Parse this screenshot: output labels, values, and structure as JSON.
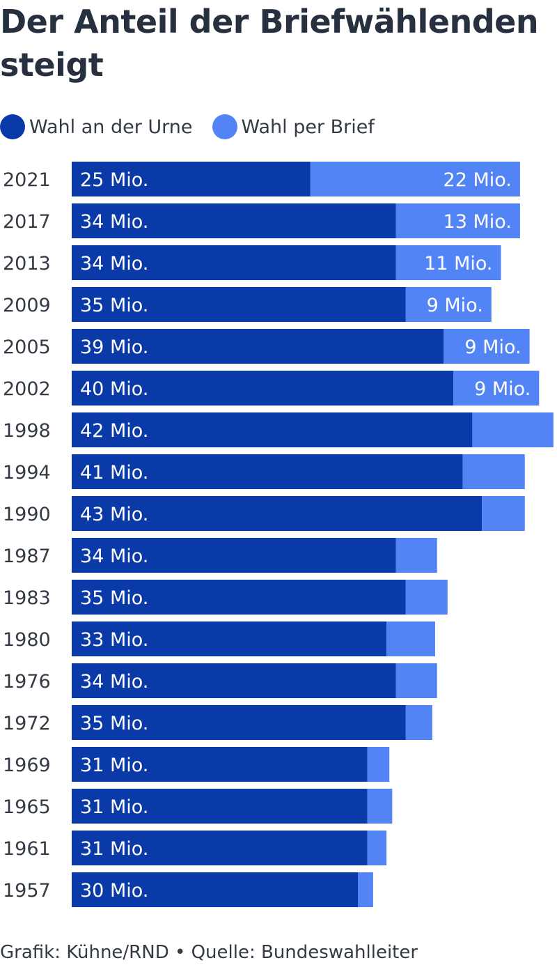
{
  "title": "Der Anteil der Briefwählenden steigt",
  "legend": [
    {
      "label": "Wahl an der Urne",
      "color": "#0a3aa8"
    },
    {
      "label": "Wahl per Brief",
      "color": "#5384f6"
    }
  ],
  "source": "Grafik: Kühne/RND • Quelle: Bundeswahlleiter",
  "chart_data": {
    "type": "bar",
    "orientation": "horizontal",
    "stacked": true,
    "title": "Der Anteil der Briefwählenden steigt",
    "unit": "Mio.",
    "categories": [
      "2021",
      "2017",
      "2013",
      "2009",
      "2005",
      "2002",
      "1998",
      "1994",
      "1990",
      "1987",
      "1983",
      "1980",
      "1976",
      "1972",
      "1969",
      "1965",
      "1961",
      "1957"
    ],
    "series": [
      {
        "name": "Wahl an der Urne",
        "color": "#0a3aa8",
        "values": [
          25,
          34,
          34,
          35,
          39,
          40,
          42,
          41,
          43,
          34,
          35,
          33,
          34,
          35,
          31,
          31,
          31,
          30
        ],
        "labels": [
          "25 Mio.",
          "34 Mio.",
          "34 Mio.",
          "35 Mio.",
          "39 Mio.",
          "40 Mio.",
          "42 Mio.",
          "41 Mio.",
          "43 Mio.",
          "34 Mio.",
          "35 Mio.",
          "33 Mio.",
          "34 Mio.",
          "35 Mio.",
          "31 Mio.",
          "31 Mio.",
          "31 Mio.",
          "30 Mio."
        ]
      },
      {
        "name": "Wahl per Brief",
        "color": "#5384f6",
        "values": [
          22,
          13,
          11,
          9,
          9,
          9,
          8.5,
          6.5,
          4.5,
          4.3,
          4.4,
          5.1,
          4.3,
          2.8,
          2.3,
          2.6,
          2.0,
          1.6
        ],
        "labels": [
          "22 Mio.",
          "13 Mio.",
          "11 Mio.",
          "9 Mio.",
          "9 Mio.",
          "9 Mio.",
          "",
          "",
          "",
          "",
          "",
          "",
          "",
          "",
          "",
          "",
          "",
          ""
        ]
      }
    ]
  }
}
